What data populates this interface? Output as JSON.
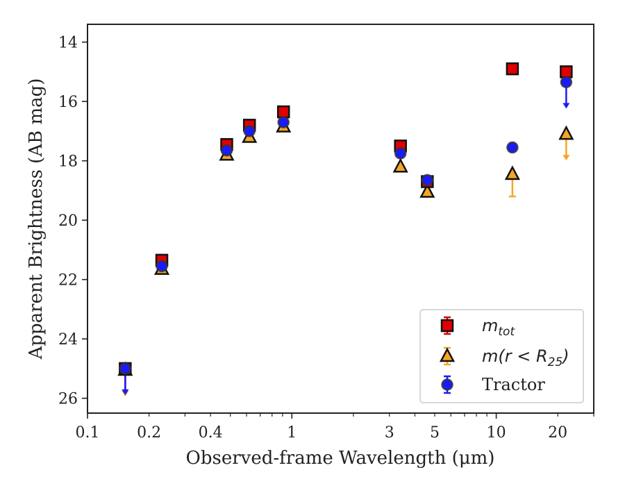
{
  "chart_data": {
    "type": "scatter",
    "xscale": "log",
    "xlim": [
      0.1,
      30
    ],
    "ylim": [
      26.5,
      13.4
    ],
    "y_inverted": true,
    "xlabel": "Observed-frame Wavelength (μm)",
    "ylabel": "Apparent Brightness (AB mag)",
    "xticks": [
      0.1,
      0.2,
      0.4,
      1,
      3,
      5,
      10,
      20
    ],
    "xtick_labels": [
      "0.1",
      "0.2",
      "0.4",
      "1",
      "3",
      "5",
      "10",
      "20"
    ],
    "yticks": [
      14,
      16,
      18,
      20,
      22,
      24,
      26
    ],
    "ytick_labels": [
      "14",
      "16",
      "18",
      "20",
      "22",
      "24",
      "26"
    ],
    "legend_position": "lower-right",
    "series": [
      {
        "name": "m_tot",
        "legend_label": {
          "base": "m",
          "sub": "tot"
        },
        "marker": "square",
        "color": "#e00000",
        "points": [
          {
            "x": 0.153,
            "y": 25.0,
            "upper_limit": true
          },
          {
            "x": 0.231,
            "y": 21.35
          },
          {
            "x": 0.48,
            "y": 17.45
          },
          {
            "x": 0.62,
            "y": 16.8
          },
          {
            "x": 0.91,
            "y": 16.35
          },
          {
            "x": 3.4,
            "y": 17.5
          },
          {
            "x": 4.6,
            "y": 18.7
          },
          {
            "x": 12.0,
            "y": 14.9
          },
          {
            "x": 22.0,
            "y": 15.0
          }
        ]
      },
      {
        "name": "m(r < R_25)",
        "legend_label": {
          "base": "m(r < R",
          "sub": "25",
          "tail": ")"
        },
        "marker": "triangle",
        "color": "#f5a623",
        "points": [
          {
            "x": 0.153,
            "y": 25.05,
            "upper_limit": true
          },
          {
            "x": 0.231,
            "y": 21.65
          },
          {
            "x": 0.48,
            "y": 17.8
          },
          {
            "x": 0.62,
            "y": 17.2
          },
          {
            "x": 0.91,
            "y": 16.85
          },
          {
            "x": 3.4,
            "y": 18.2
          },
          {
            "x": 4.6,
            "y": 19.05
          },
          {
            "x": 12.0,
            "y": 18.45,
            "err_low": 0.75,
            "err_high": 0.0
          },
          {
            "x": 22.0,
            "y": 17.1,
            "upper_limit": true
          }
        ]
      },
      {
        "name": "Tractor",
        "marker": "circle",
        "color": "#1a1aff",
        "points": [
          {
            "x": 0.153,
            "y": 25.0,
            "upper_limit": true
          },
          {
            "x": 0.231,
            "y": 21.55
          },
          {
            "x": 0.48,
            "y": 17.65
          },
          {
            "x": 0.62,
            "y": 17.0
          },
          {
            "x": 0.91,
            "y": 16.7
          },
          {
            "x": 3.4,
            "y": 17.75
          },
          {
            "x": 4.6,
            "y": 18.65
          },
          {
            "x": 12.0,
            "y": 17.55
          },
          {
            "x": 22.0,
            "y": 15.35,
            "upper_limit": true
          }
        ]
      }
    ],
    "legend": [
      {
        "label": {
          "base": "m",
          "sub": "tot"
        }
      },
      {
        "label": {
          "base": "m(r < R",
          "sub": "25",
          "tail": ")"
        }
      },
      {
        "label": {
          "base": "Tractor"
        }
      }
    ]
  }
}
